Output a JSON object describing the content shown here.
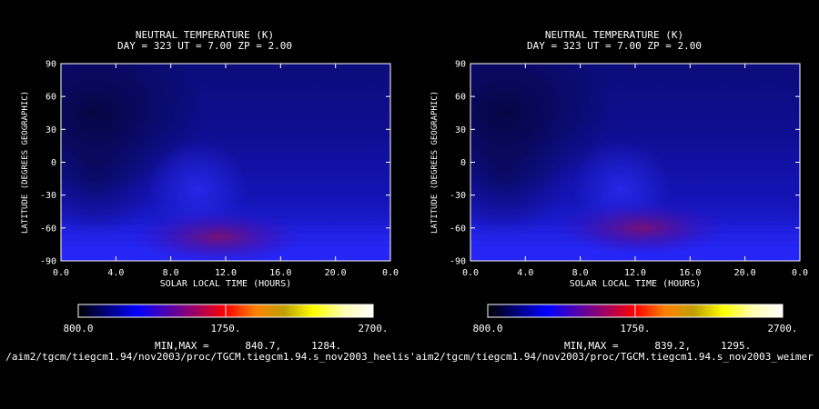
{
  "chart_data": [
    {
      "type": "heatmap",
      "title": "NEUTRAL TEMPERATURE (K)",
      "subtitle": "DAY = 323   UT =   7.00   ZP =    2.00",
      "xlabel": "SOLAR LOCAL TIME (HOURS)",
      "ylabel": "LATITUDE (DEGREES GEOGRAPHIC)",
      "x_ticks": [
        "0.0",
        "4.0",
        "8.0",
        "12.0",
        "16.0",
        "20.0",
        "0.0"
      ],
      "y_ticks": [
        "90",
        "60",
        "30",
        "0",
        "-30",
        "-60",
        "-90"
      ],
      "xlim": [
        0,
        24
      ],
      "ylim": [
        -90,
        90
      ],
      "colorbar": {
        "min_label": "800.0",
        "mid_label": "1750.",
        "max_label": "2700.",
        "range": [
          800,
          2700
        ]
      },
      "minmax_label": "MIN,MAX =      840.7,     1284.",
      "min": 840.7,
      "max": 1284,
      "field": {
        "cold_center": [
          2.5,
          45
        ],
        "hot_center": [
          11.5,
          -68
        ],
        "south_band_lat": -78
      },
      "path_text": "/aim2/tgcm/tiegcm1.94/nov2003/proc/TGCM.tiegcm1.94.s_nov2003_heelis"
    },
    {
      "type": "heatmap",
      "title": "NEUTRAL TEMPERATURE (K)",
      "subtitle": "DAY = 323   UT =   7.00   ZP =    2.00",
      "xlabel": "SOLAR LOCAL TIME (HOURS)",
      "ylabel": "LATITUDE (DEGREES GEOGRAPHIC)",
      "x_ticks": [
        "0.0",
        "4.0",
        "8.0",
        "12.0",
        "16.0",
        "20.0",
        "0.0"
      ],
      "y_ticks": [
        "90",
        "60",
        "30",
        "0",
        "-30",
        "-60",
        "-90"
      ],
      "xlim": [
        0,
        24
      ],
      "ylim": [
        -90,
        90
      ],
      "colorbar": {
        "min_label": "800.0",
        "mid_label": "1750.",
        "max_label": "2700.",
        "range": [
          800,
          2700
        ]
      },
      "minmax_label": "MIN,MAX =      839.2,     1295.",
      "min": 839.2,
      "max": 1295,
      "field": {
        "cold_center": [
          2.5,
          45
        ],
        "hot_center": [
          12.5,
          -60
        ],
        "south_band_lat": -78
      },
      "path_text": "'aim2/tgcm/tiegcm1.94/nov2003/proc/TGCM.tiegcm1.94.s_nov2003_weimer"
    }
  ],
  "colors": {
    "background": "#000000",
    "text": "#ffffff",
    "colorbar_stops": [
      "#000000",
      "#000080",
      "#0000ff",
      "#5000b0",
      "#a00060",
      "#ff0000",
      "#ff8000",
      "#c0a000",
      "#ffff00",
      "#ffffb0",
      "#ffffff"
    ]
  }
}
